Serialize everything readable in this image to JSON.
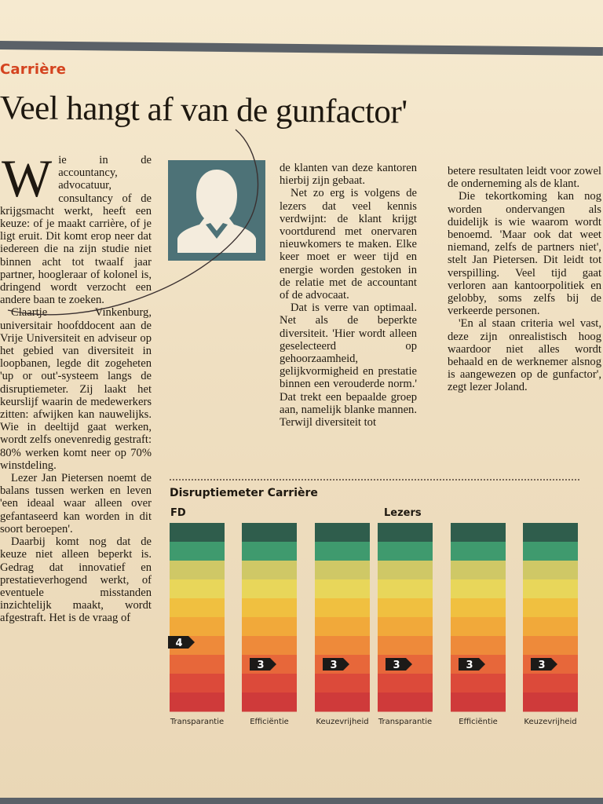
{
  "section": "Carrière",
  "headline": "Veel hangt af van de gunfactor'",
  "article": {
    "col1": {
      "dropcap": "W",
      "paragraphs": [
        "ie in de accountancy, advocatuur, consultancy of de krijgsmacht werkt, heeft een keuze: of je maakt carrière, of je ligt eruit. Dit komt erop neer dat iedereen die na zijn studie niet binnen acht tot twaalf jaar partner, hoogleraar of kolonel is, dringend wordt verzocht een andere baan te zoeken.",
        "Claartje Vinkenburg, universitair hoofddocent aan de Vrije Universiteit en adviseur op het gebied van diversiteit in loopbanen, legde dit zogeheten 'up or out'-systeem langs de disruptiemeter. Zij laakt het keurslijf waarin de medewerkers zitten: afwijken kan nauwelijks. Wie in deeltijd gaat werken, wordt zelfs onevenredig gestraft: 80% werken komt neer op 70% winstdeling.",
        "Lezer Jan Pietersen noemt de balans tussen werken en leven 'een ideaal waar alleen over gefantaseerd kan worden in dit soort beroepen'.",
        "Daarbij komt nog dat de keuze niet alleen beperkt is. Gedrag dat innovatief en prestatieverhogend werkt, of eventuele misstanden inzichtelijk maakt, wordt afgestraft. Het is de vraag of"
      ]
    },
    "col3": {
      "paragraphs": [
        "de klanten van deze kantoren hierbij zijn gebaat.",
        "Net zo erg is volgens de lezers dat veel kennis verdwijnt: de klant krijgt voortdurend met onervaren nieuwkomers te maken. Elke keer moet er weer tijd en energie worden gestoken in de relatie met de accountant of de advocaat.",
        "Dat is verre van optimaal. Net als de beperkte diversiteit. 'Hier wordt alleen geselecteerd op gehoorzaamheid, gelijkvormigheid en prestatie binnen een verouderde norm.' Dat trekt een bepaalde groep aan, namelijk blanke mannen. Terwijl diversiteit tot"
      ]
    },
    "col4": {
      "paragraphs": [
        "betere resultaten leidt voor zowel de onderneming als de klant.",
        "Die tekortkoming kan nog worden ondervangen als duidelijk is wie waarom wordt benoemd. 'Maar ook dat weet niemand, zelfs de partners niet', stelt Jan Pietersen. Dit leidt tot verspilling. Veel tijd gaat verloren aan kantoorpolitiek en gelobby, soms zelfs bij de verkeerde personen.",
        "'En al staan criteria wel vast, deze zijn onrealistisch hoog waardoor niet alles wordt behaald en de werknemer alsnog is aangewezen op de gunfactor', zegt lezer Joland."
      ]
    }
  },
  "chart_data": {
    "type": "bar",
    "title": "Disruptiemeter Carrière",
    "groups": [
      "FD",
      "Lezers"
    ],
    "categories": [
      "Transparantie",
      "Efficiëntie",
      "Keuzevrijheid",
      "Transparantie",
      "Efficiëntie",
      "Keuzevrijheid"
    ],
    "group_of_category": [
      0,
      0,
      0,
      1,
      1,
      1
    ],
    "values": [
      4,
      3,
      3,
      3,
      3,
      3
    ],
    "scale_levels": 10,
    "scale_colors": [
      "#2f5d4c",
      "#3f9a6e",
      "#cfc866",
      "#e8d65a",
      "#f0c040",
      "#f1a93a",
      "#ee8a3a",
      "#e7673a",
      "#dc4a3a",
      "#cf3a3a"
    ]
  }
}
